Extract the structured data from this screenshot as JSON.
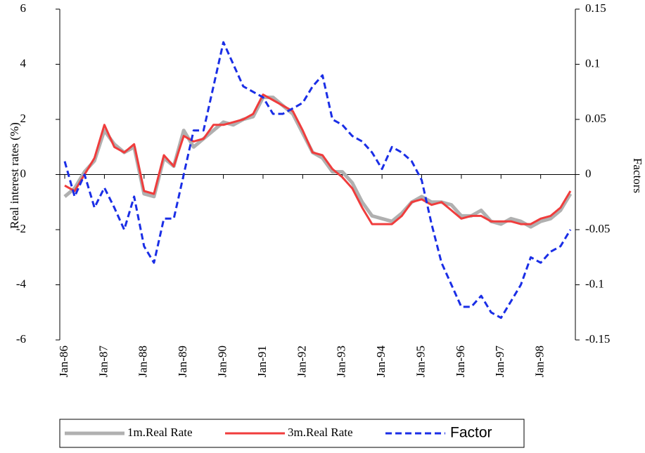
{
  "chart_data": {
    "type": "line",
    "y_label": "Real interest rates (%)",
    "y2_label": "Factors",
    "categories": [
      "Jan-86",
      null,
      null,
      null,
      "Jan-87",
      null,
      null,
      null,
      "Jan-88",
      null,
      null,
      null,
      "Jan-89",
      null,
      null,
      null,
      "Jan-90",
      null,
      null,
      null,
      "Jan-91",
      null,
      null,
      null,
      "Jan-92",
      null,
      null,
      null,
      "Jan-93",
      null,
      null,
      null,
      "Jan-94",
      null,
      null,
      null,
      "Jan-95",
      null,
      null,
      null,
      "Jan-96",
      null,
      null,
      null,
      "Jan-97",
      null,
      null,
      null,
      "Jan-98",
      null,
      null,
      null
    ],
    "series": [
      {
        "name": "1m.Real Rate",
        "color": "#b0b0b0",
        "values": [
          -0.8,
          -0.5,
          0.1,
          0.5,
          1.6,
          1.1,
          0.8,
          1.0,
          -0.7,
          -0.8,
          0.6,
          0.3,
          1.6,
          1.0,
          1.3,
          1.6,
          1.9,
          1.8,
          2.0,
          2.1,
          2.8,
          2.8,
          2.5,
          2.2,
          1.5,
          0.8,
          0.6,
          0.1,
          0.1,
          -0.3,
          -1.0,
          -1.5,
          -1.6,
          -1.7,
          -1.4,
          -1.0,
          -0.8,
          -1.0,
          -1.0,
          -1.1,
          -1.5,
          -1.5,
          -1.3,
          -1.7,
          -1.8,
          -1.6,
          -1.7,
          -1.9,
          -1.7,
          -1.6,
          -1.3,
          -0.7
        ]
      },
      {
        "name": "3m.Real Rate",
        "color": "#f03c3c",
        "values": [
          -0.4,
          -0.6,
          0.0,
          0.6,
          1.8,
          1.0,
          0.8,
          1.1,
          -0.6,
          -0.7,
          0.7,
          0.3,
          1.4,
          1.2,
          1.3,
          1.8,
          1.8,
          1.9,
          2.0,
          2.2,
          2.9,
          2.7,
          2.5,
          2.3,
          1.6,
          0.8,
          0.7,
          0.2,
          -0.1,
          -0.5,
          -1.2,
          -1.8,
          -1.8,
          -1.8,
          -1.5,
          -1.0,
          -0.9,
          -1.1,
          -1.0,
          -1.3,
          -1.6,
          -1.5,
          -1.5,
          -1.7,
          -1.7,
          -1.7,
          -1.8,
          -1.8,
          -1.6,
          -1.5,
          -1.2,
          -0.6
        ]
      },
      {
        "name": "Factor",
        "color": "#1a2ee6",
        "axis": "y2",
        "dashed": true,
        "values": [
          0.012,
          -0.02,
          0.0,
          -0.03,
          -0.012,
          -0.03,
          -0.05,
          -0.02,
          -0.065,
          -0.08,
          -0.04,
          -0.04,
          0.0,
          0.04,
          0.04,
          0.08,
          0.12,
          0.1,
          0.08,
          0.075,
          0.07,
          0.055,
          0.055,
          0.06,
          0.065,
          0.08,
          0.09,
          0.05,
          0.045,
          0.035,
          0.03,
          0.02,
          0.005,
          0.025,
          0.02,
          0.012,
          -0.005,
          -0.045,
          -0.08,
          -0.1,
          -0.12,
          -0.12,
          -0.11,
          -0.125,
          -0.13,
          -0.115,
          -0.1,
          -0.075,
          -0.08,
          -0.07,
          -0.065,
          -0.05
        ]
      }
    ],
    "ylim": [
      -6,
      6
    ],
    "yticks": [
      -6,
      -4,
      -2,
      0,
      2,
      4,
      6
    ],
    "y2lim": [
      -0.15,
      0.15
    ],
    "y2ticks": [
      -0.15,
      -0.1,
      -0.05,
      0,
      0.05,
      0.1,
      0.15
    ],
    "legend": "bottom"
  }
}
